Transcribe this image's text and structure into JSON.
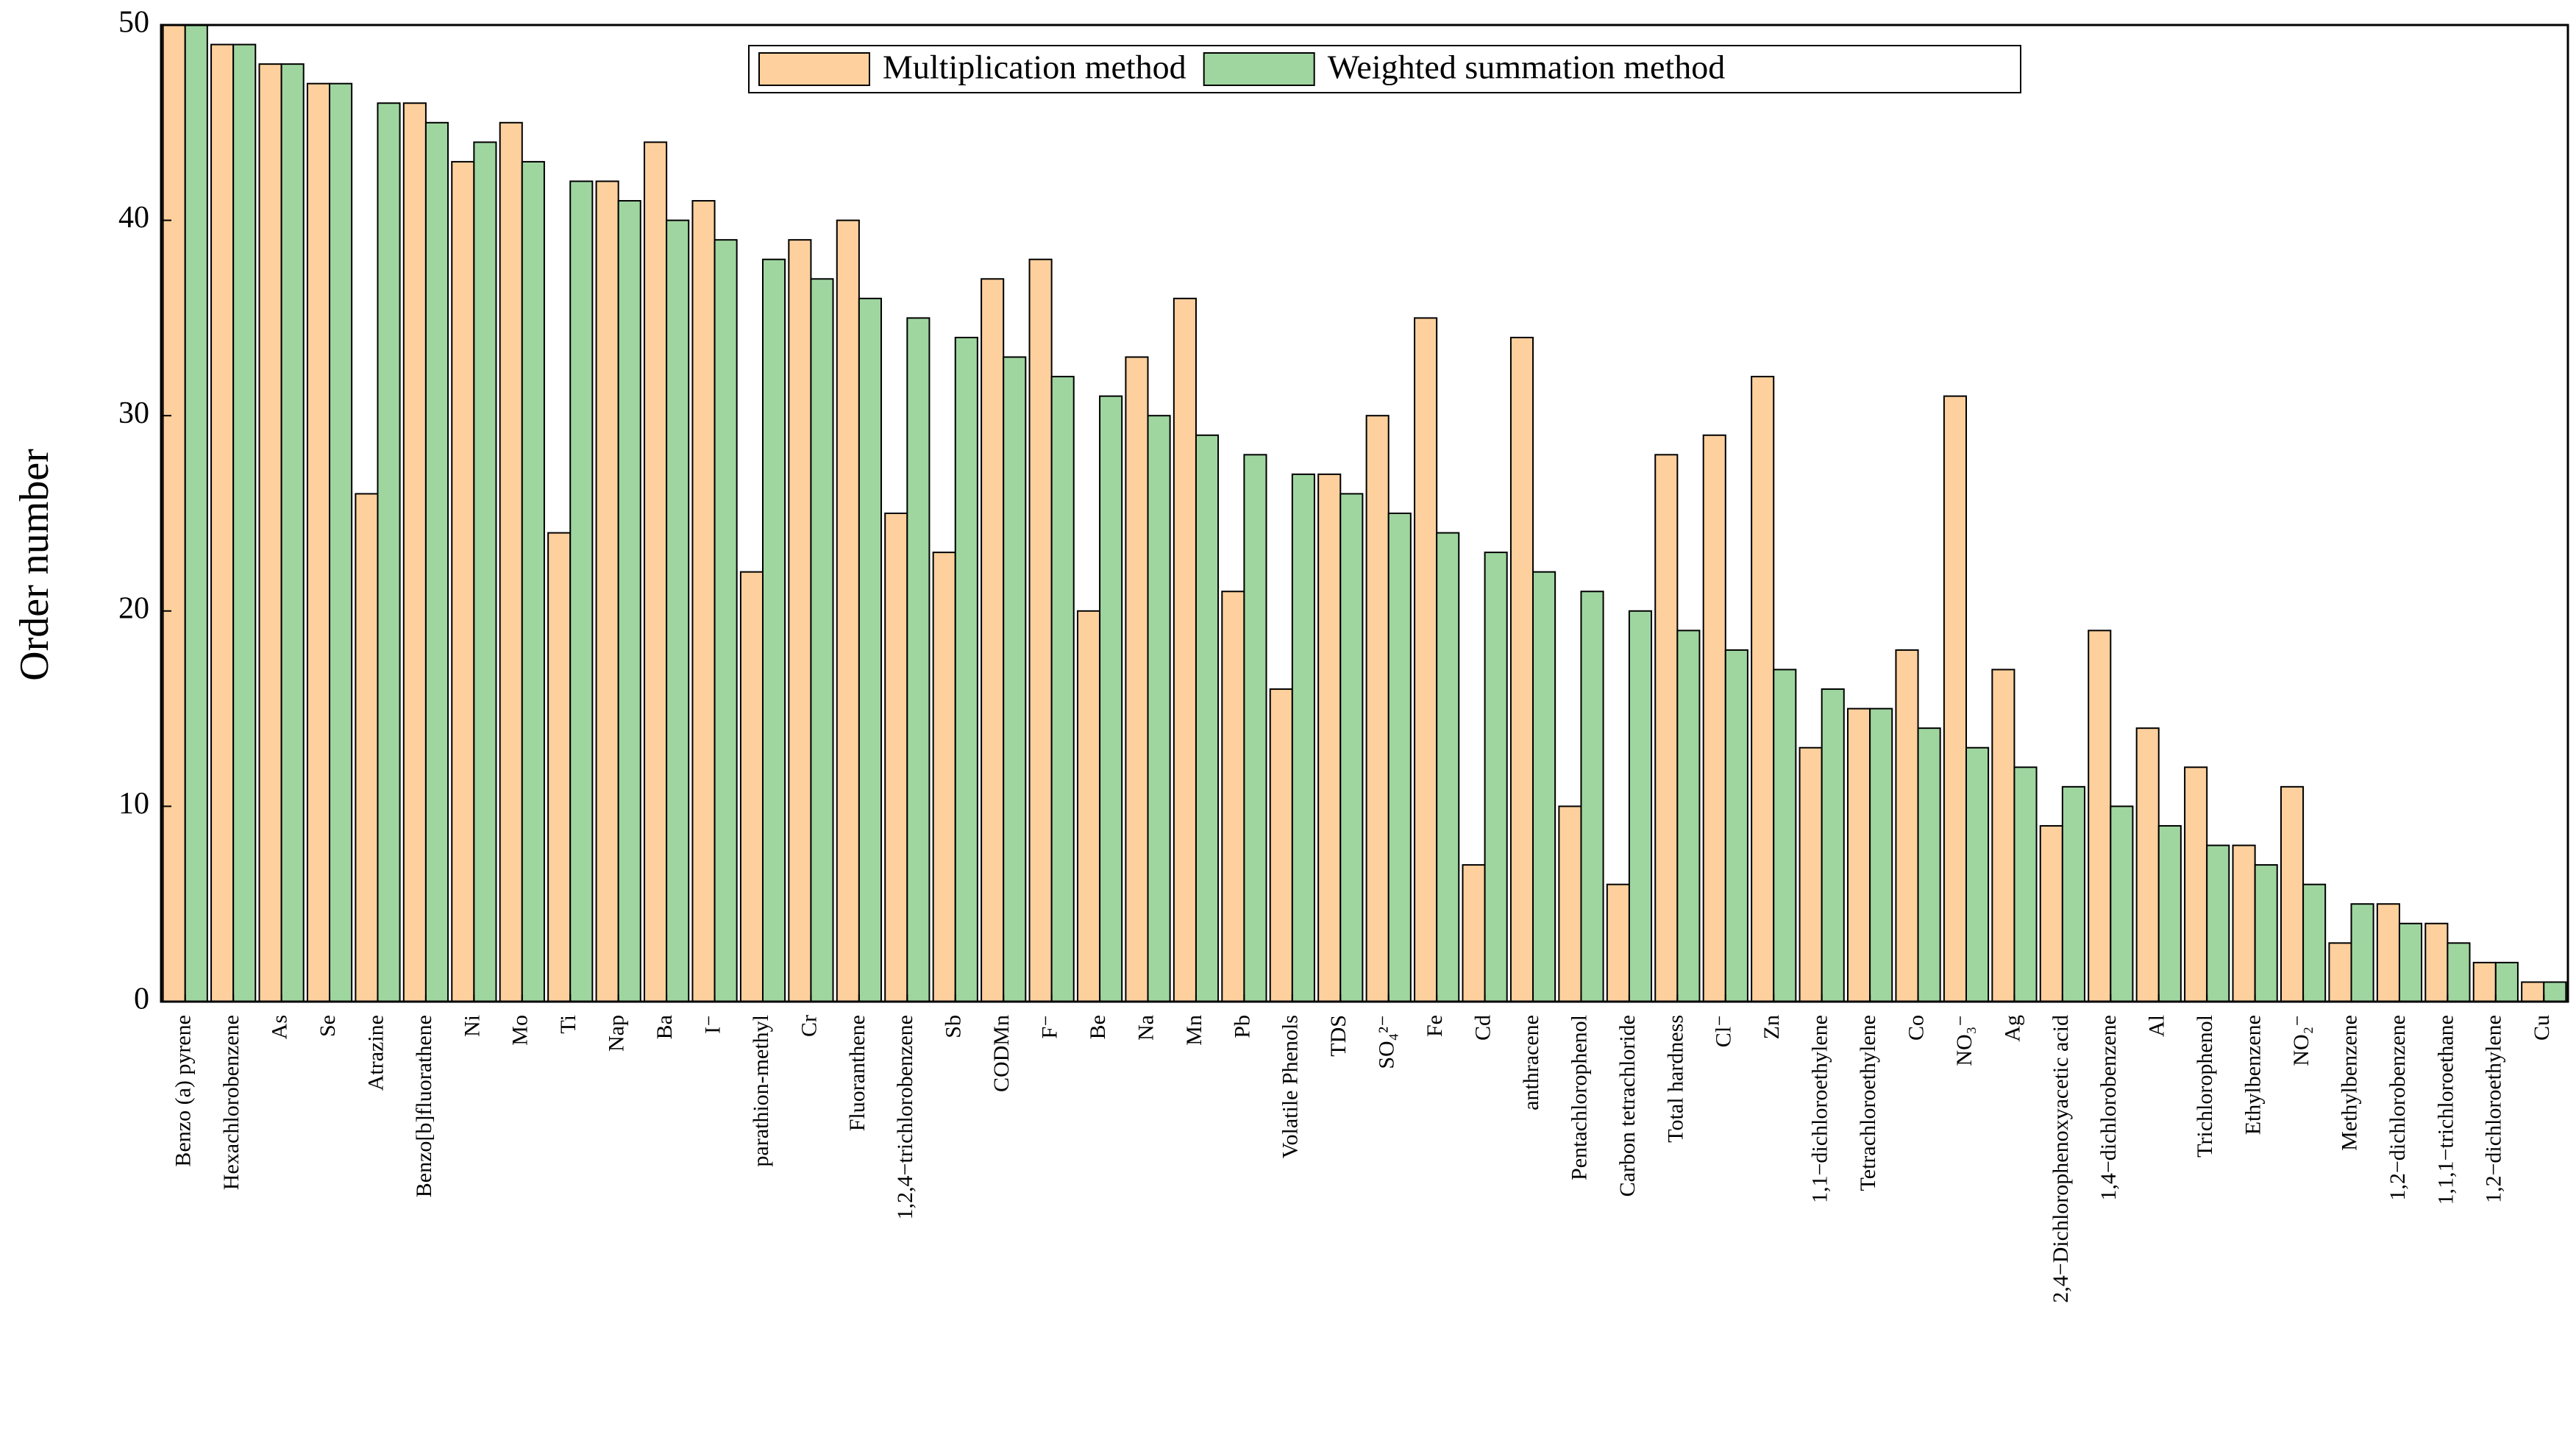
{
  "chart_data": {
    "type": "bar",
    "y_label": "Order number",
    "categories": [
      "Benzo (a) pyrene",
      "Hexachlorobenzene",
      "As",
      "Se",
      "Atrazine",
      "Benzo[b]fluorathene",
      "Ni",
      "Mo",
      "Ti",
      "Nap",
      "Ba",
      "I⁻",
      "parathion-methyl",
      "Cr",
      "Fluoranthene",
      "1,2,4−trichlorobenzene",
      "Sb",
      "CODMn",
      "F⁻",
      "Be",
      "Na",
      "Mn",
      "Pb",
      "Volatile Phenols",
      "TDS",
      "SO₄²⁻",
      "Fe",
      "Cd",
      "anthracene",
      "Pentachlorophenol",
      "Carbon tetrachloride",
      "Total hardness",
      "Cl⁻",
      "Zn",
      "1,1−dichloroethylene",
      "Tetrachloroethylene",
      "Co",
      "NO₃⁻",
      "Ag",
      "2,4−Dichlorophenoxyacetic acid",
      "1,4−dichlorobenzene",
      "Al",
      "Trichlorophenol",
      "Ethylbenzene",
      "NO₂⁻",
      "Methylbenzene",
      "1,2−dichlorobenzene",
      "1,1,1−trichloroethane",
      "1,2−dichloroethylene",
      "Cu"
    ],
    "series": [
      {
        "name": "Multiplication method",
        "color": "#fdd09d",
        "values": [
          50,
          49,
          48,
          47,
          26,
          46,
          43,
          45,
          24,
          42,
          44,
          41,
          22,
          39,
          40,
          25,
          23,
          37,
          38,
          20,
          33,
          36,
          21,
          16,
          27,
          30,
          35,
          7,
          34,
          10,
          6,
          28,
          29,
          32,
          13,
          15,
          18,
          31,
          17,
          9,
          19,
          14,
          12,
          8,
          11,
          3,
          5,
          4,
          2,
          1
        ]
      },
      {
        "name": "Weighted summation method",
        "color": "#9fd6a0",
        "values": [
          50,
          49,
          48,
          47,
          46,
          45,
          44,
          43,
          42,
          41,
          40,
          39,
          38,
          37,
          36,
          35,
          34,
          33,
          32,
          31,
          30,
          29,
          28,
          27,
          26,
          25,
          24,
          23,
          22,
          21,
          20,
          19,
          18,
          17,
          16,
          15,
          14,
          13,
          12,
          11,
          10,
          9,
          8,
          7,
          6,
          5,
          4,
          3,
          2,
          1
        ]
      }
    ],
    "ylim": [
      0,
      50
    ],
    "yticks": [
      0,
      10,
      20,
      30,
      40,
      50
    ],
    "legend": "top-center",
    "grid": false
  }
}
